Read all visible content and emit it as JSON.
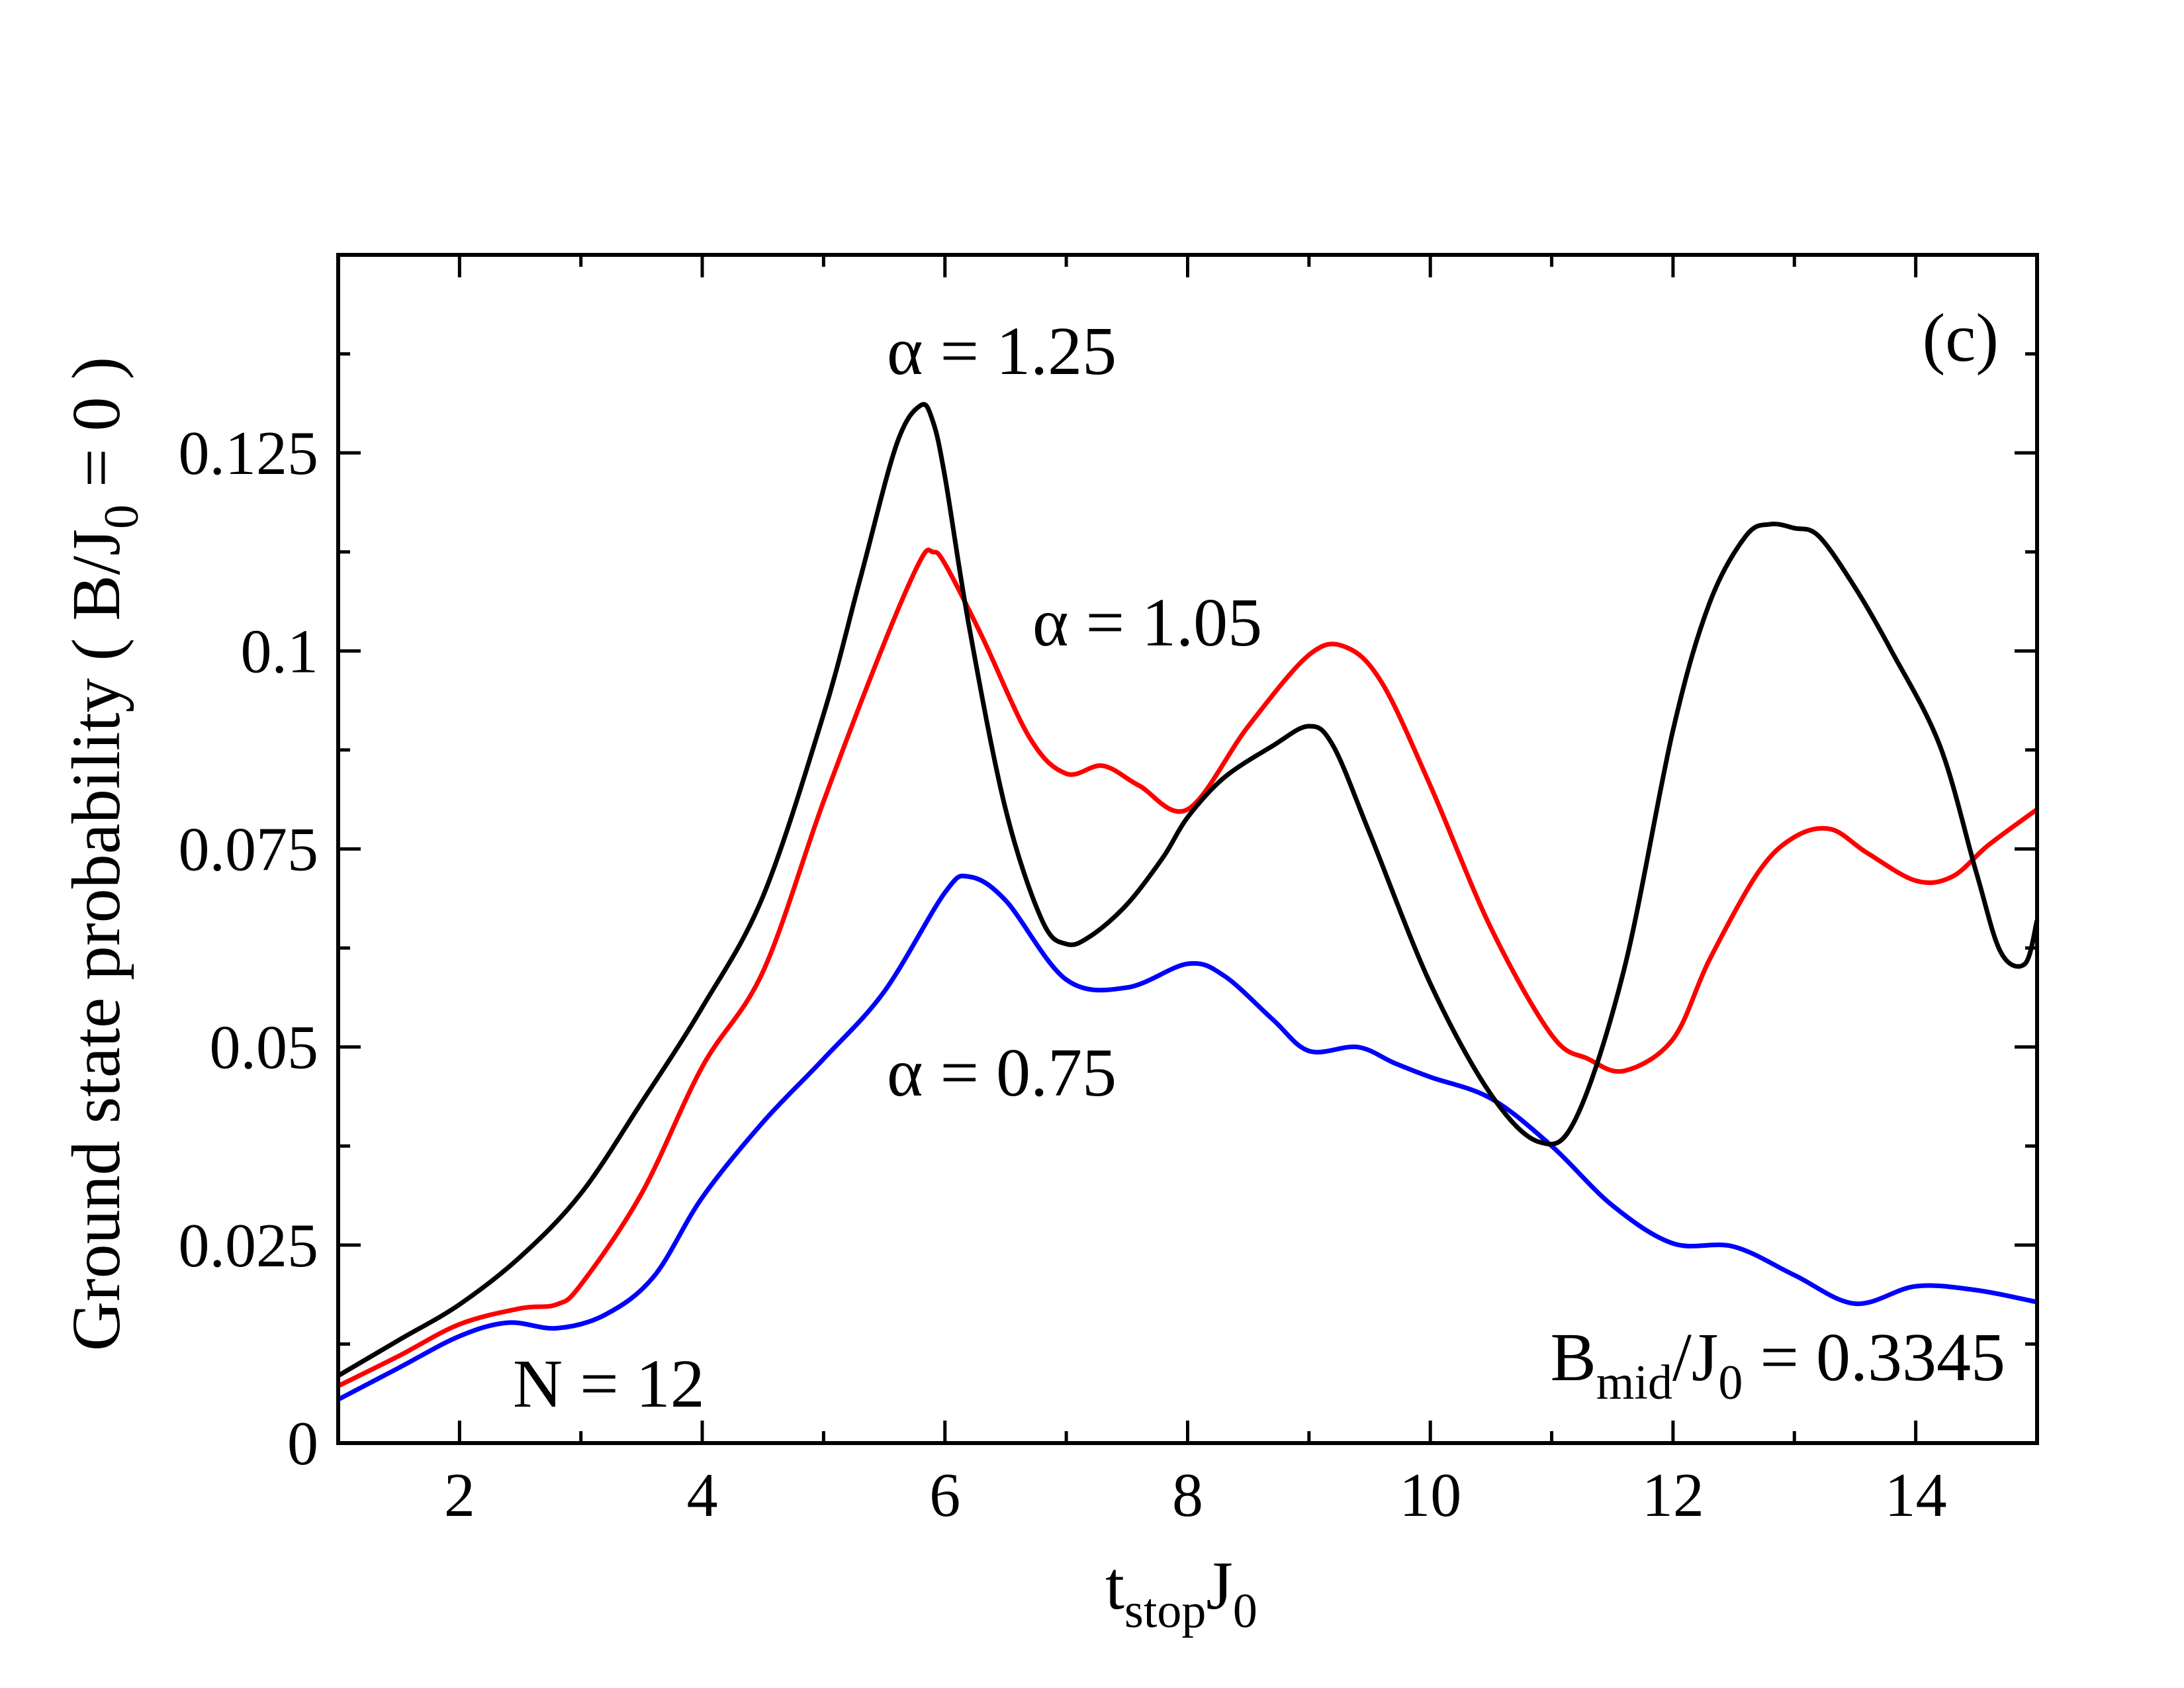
{
  "chart_data": {
    "type": "line",
    "panel_label": "(c)",
    "xlabel": {
      "main": "t",
      "sub1": "stop",
      "mid": "J",
      "sub2": "0"
    },
    "ylabel": {
      "pre": "Ground state probability ( B/J",
      "sub": "0",
      "post": " = 0 )"
    },
    "xlim": [
      1,
      15
    ],
    "ylim": [
      0,
      0.15
    ],
    "x_ticks": [
      2,
      4,
      6,
      8,
      10,
      12,
      14
    ],
    "x_tick_labels": [
      "2",
      "4",
      "6",
      "8",
      "10",
      "12",
      "14"
    ],
    "y_ticks": [
      0,
      0.025,
      0.05,
      0.075,
      0.1,
      0.125
    ],
    "y_tick_labels": [
      "0",
      "0.025",
      "0.05",
      "0.075",
      "0.1",
      "0.125"
    ],
    "annotations": {
      "n_label": "N = 12",
      "bmid": {
        "pre": "B",
        "sub1": "mid",
        "mid": "/J",
        "sub2": "0",
        "post": " = 0.3345"
      }
    },
    "series": [
      {
        "name": "α = 1.25",
        "color": "#000000",
        "x": [
          1.0,
          1.5,
          2.0,
          2.5,
          3.0,
          3.5,
          4.0,
          4.5,
          5.0,
          5.3,
          5.6,
          5.8,
          5.9,
          6.0,
          6.2,
          6.5,
          6.8,
          7.0,
          7.2,
          7.5,
          7.8,
          8.0,
          8.3,
          8.7,
          9.0,
          9.2,
          9.5,
          10.0,
          10.5,
          10.9,
          11.2,
          11.6,
          12.0,
          12.3,
          12.6,
          12.8,
          13.0,
          13.2,
          13.5,
          13.8,
          14.2,
          14.5,
          14.7,
          14.9,
          15.0
        ],
        "y": [
          0.0085,
          0.013,
          0.0175,
          0.0235,
          0.0315,
          0.043,
          0.055,
          0.069,
          0.092,
          0.109,
          0.126,
          0.131,
          0.129,
          0.122,
          0.103,
          0.08,
          0.066,
          0.063,
          0.064,
          0.068,
          0.074,
          0.079,
          0.084,
          0.088,
          0.0905,
          0.088,
          0.077,
          0.058,
          0.044,
          0.038,
          0.041,
          0.06,
          0.09,
          0.106,
          0.1145,
          0.116,
          0.1155,
          0.1145,
          0.108,
          0.1,
          0.088,
          0.072,
          0.062,
          0.0605,
          0.066
        ]
      },
      {
        "name": "α = 1.05",
        "color": "#ff0000",
        "x": [
          1.0,
          1.5,
          2.0,
          2.5,
          2.8,
          3.0,
          3.5,
          4.0,
          4.5,
          5.0,
          5.5,
          5.8,
          5.9,
          6.0,
          6.3,
          6.7,
          7.0,
          7.3,
          7.6,
          8.0,
          8.5,
          9.0,
          9.3,
          9.6,
          10.0,
          10.5,
          11.0,
          11.3,
          11.6,
          12.0,
          12.3,
          12.7,
          13.0,
          13.3,
          13.6,
          14.0,
          14.3,
          14.6,
          15.0
        ],
        "y": [
          0.0072,
          0.011,
          0.015,
          0.017,
          0.0175,
          0.02,
          0.0315,
          0.0475,
          0.0595,
          0.081,
          0.101,
          0.1115,
          0.1125,
          0.111,
          0.102,
          0.089,
          0.0845,
          0.0855,
          0.083,
          0.08,
          0.0905,
          0.0995,
          0.1005,
          0.096,
          0.083,
          0.065,
          0.0515,
          0.0485,
          0.047,
          0.051,
          0.061,
          0.072,
          0.0765,
          0.0775,
          0.0745,
          0.071,
          0.0715,
          0.0755,
          0.08
        ]
      },
      {
        "name": "α = 0.75",
        "color": "#0000ff",
        "x": [
          1.0,
          1.5,
          2.0,
          2.4,
          2.8,
          3.2,
          3.6,
          4.0,
          4.5,
          5.0,
          5.5,
          6.0,
          6.2,
          6.5,
          7.0,
          7.5,
          8.0,
          8.3,
          8.7,
          9.0,
          9.4,
          9.7,
          10.0,
          10.5,
          11.0,
          11.5,
          12.0,
          12.5,
          13.0,
          13.5,
          14.0,
          14.5,
          15.0
        ],
        "y": [
          0.0055,
          0.0095,
          0.0135,
          0.0152,
          0.0145,
          0.0162,
          0.021,
          0.031,
          0.0405,
          0.0485,
          0.057,
          0.0695,
          0.0715,
          0.0685,
          0.0585,
          0.0575,
          0.0605,
          0.059,
          0.0535,
          0.0495,
          0.05,
          0.048,
          0.0462,
          0.0435,
          0.0375,
          0.03,
          0.0252,
          0.0248,
          0.0212,
          0.0176,
          0.0198,
          0.0193,
          0.0178
        ]
      }
    ]
  }
}
